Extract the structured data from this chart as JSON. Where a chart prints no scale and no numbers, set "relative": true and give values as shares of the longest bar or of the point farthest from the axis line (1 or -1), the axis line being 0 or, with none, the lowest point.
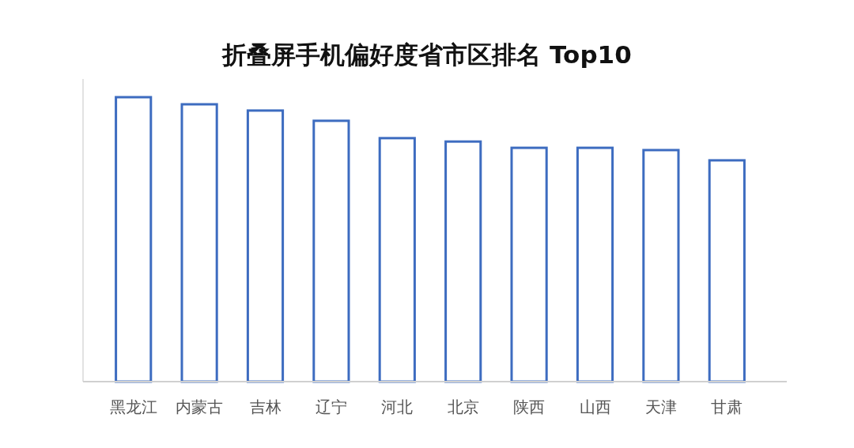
{
  "chart_data": {
    "type": "bar",
    "title": "折叠屏手机偏好度省市区排名 Top10",
    "relative": true,
    "categories": [
      "黑龙江",
      "内蒙古",
      "吉林",
      "辽宁",
      "河北",
      "北京",
      "陕西",
      "山西",
      "天津",
      "甘肃"
    ],
    "values": [
      1,
      0.975,
      0.953,
      0.917,
      0.856,
      0.844,
      0.822,
      0.822,
      0.814,
      0.778
    ],
    "color": "#3d6cc0"
  }
}
